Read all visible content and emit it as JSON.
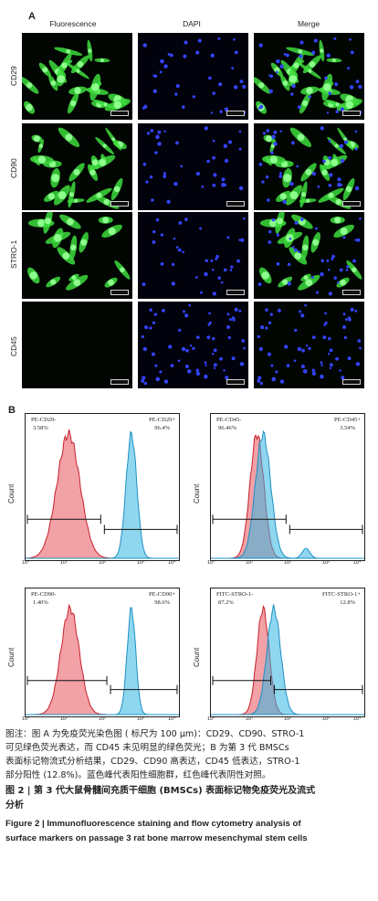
{
  "panel_a": {
    "letter": "A",
    "columns": [
      "Fluorescence",
      "DAPI",
      "Merge"
    ],
    "rows": [
      "CD29",
      "CD90",
      "STRO-1",
      "CD45"
    ]
  },
  "panel_b": {
    "letter": "B",
    "y_label": "Count",
    "x_ticks": [
      "10°",
      "10¹",
      "10²",
      "10³",
      "10⁴"
    ],
    "plots": [
      {
        "left_label": "PE-CD29-",
        "left_value": "3.58%",
        "right_label": "PE-CD29+",
        "right_value": "96.4%"
      },
      {
        "left_label": "PE-CD45-",
        "left_value": "96.46%",
        "right_label": "PE-CD45+",
        "right_value": "3.54%"
      },
      {
        "left_label": "PE-CD90-",
        "left_value": "1.40%",
        "right_label": "PE-CD90+",
        "right_value": "98.6%"
      },
      {
        "left_label": "FITC-STRO-1-",
        "left_value": "87.2%",
        "right_label": "FITC-STRO-1+",
        "right_value": "12.8%"
      }
    ]
  },
  "caption": {
    "line1": "图注：图 A 为免疫荧光染色图 ( 标尺为 100 μm)：CD29、CD90、STRO-1",
    "line2": "可见绿色荧光表达，而 CD45 未见明显的绿色荧光；B 为第 3 代 BMSCs",
    "line3": "表面标记物流式分析结果，CD29、CD90 高表达，CD45 低表达，STRO-1",
    "line4": "部分阳性 (12.8%)。蓝色峰代表阳性细胞群，红色峰代表阴性对照。"
  },
  "title": {
    "cn_line1": "图 2 | 第 3 代大鼠骨髓间充质干细胞 (BMSCs) 表面标记物免疫荧光及流式",
    "cn_line2": "分析",
    "en_line1": "Figure 2 | Immunofluorescence staining and flow cytometry analysis of",
    "en_line2": "surface markers on passage 3 rat bone marrow mesenchymal stem cells"
  },
  "colors": {
    "negative_peak": "#e8535d",
    "positive_peak": "#33b6e2",
    "green_cells": "#3ddc3d",
    "dapi_nuclei": "#3344ff"
  }
}
